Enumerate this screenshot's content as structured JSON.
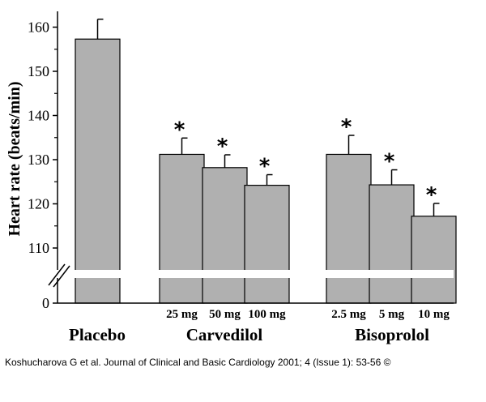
{
  "chart_data": {
    "type": "bar",
    "ylabel": "Heart rate (beats/min)",
    "ylim": [
      105,
      165
    ],
    "axis_break": true,
    "y_ticks": [
      110,
      120,
      130,
      140,
      150,
      160
    ],
    "y_ticks_labels": [
      "110",
      "120",
      "130",
      "140",
      "150",
      "160"
    ],
    "y_zero_label": "0",
    "grid": false,
    "bar_color": "#b0b0b0",
    "bars": [
      {
        "group": "Placebo",
        "dose": "",
        "value": 157.3,
        "error": 4.5,
        "significant": false
      },
      {
        "group": "Carvedilol",
        "dose": "25 mg",
        "value": 131.2,
        "error": 3.7,
        "significant": true
      },
      {
        "group": "Carvedilol",
        "dose": "50 mg",
        "value": 128.2,
        "error": 2.9,
        "significant": true
      },
      {
        "group": "Carvedilol",
        "dose": "100 mg",
        "value": 124.2,
        "error": 2.4,
        "significant": true
      },
      {
        "group": "Bisoprolol",
        "dose": "2.5 mg",
        "value": 131.2,
        "error": 4.3,
        "significant": true
      },
      {
        "group": "Bisoprolol",
        "dose": "5 mg",
        "value": 124.3,
        "error": 3.4,
        "significant": true
      },
      {
        "group": "Bisoprolol",
        "dose": "10 mg",
        "value": 117.2,
        "error": 2.9,
        "significant": true
      }
    ],
    "groups": [
      "Placebo",
      "Carvedilol",
      "Bisoprolol"
    ],
    "significance_marker": "*"
  },
  "credit": "Koshucharova G et al. Journal of Clinical and Basic Cardiology 2001; 4 (Issue 1): 53-56 ©"
}
